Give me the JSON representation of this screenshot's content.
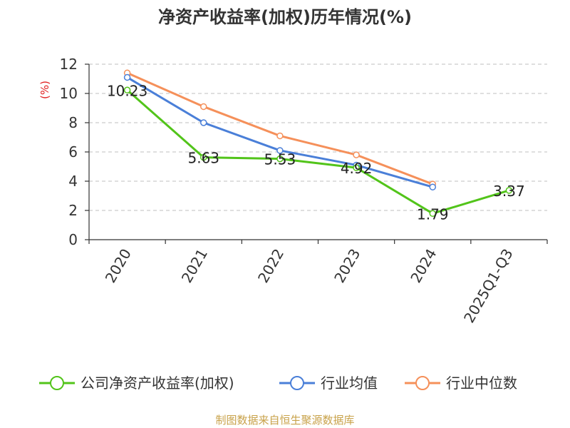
{
  "chart_data": {
    "type": "line",
    "title": "净资产收益率(加权)历年情况(%)",
    "ylabel": "(%)",
    "xlabel": "",
    "categories": [
      "2020",
      "2021",
      "2022",
      "2023",
      "2024",
      "2025Q1-Q3"
    ],
    "ylim": [
      0,
      12
    ],
    "yticks": [
      0,
      2,
      4,
      6,
      8,
      10,
      12
    ],
    "grid": true,
    "legend_position": "bottom",
    "series": [
      {
        "name": "公司净资产收益率(加权)",
        "color": "#52c41a",
        "values": [
          10.23,
          5.63,
          5.53,
          4.92,
          1.79,
          3.37
        ],
        "labels": [
          "10.23",
          "5.63",
          "5.53",
          "4.92",
          "1.79",
          "3.37"
        ]
      },
      {
        "name": "行业均值",
        "color": "#4a7fd8",
        "values": [
          11.1,
          8.0,
          6.1,
          5.1,
          3.6,
          null
        ]
      },
      {
        "name": "行业中位数",
        "color": "#f5905a",
        "values": [
          11.4,
          9.1,
          7.1,
          5.8,
          3.8,
          null
        ]
      }
    ]
  },
  "source": "制图数据来自恒生聚源数据库"
}
